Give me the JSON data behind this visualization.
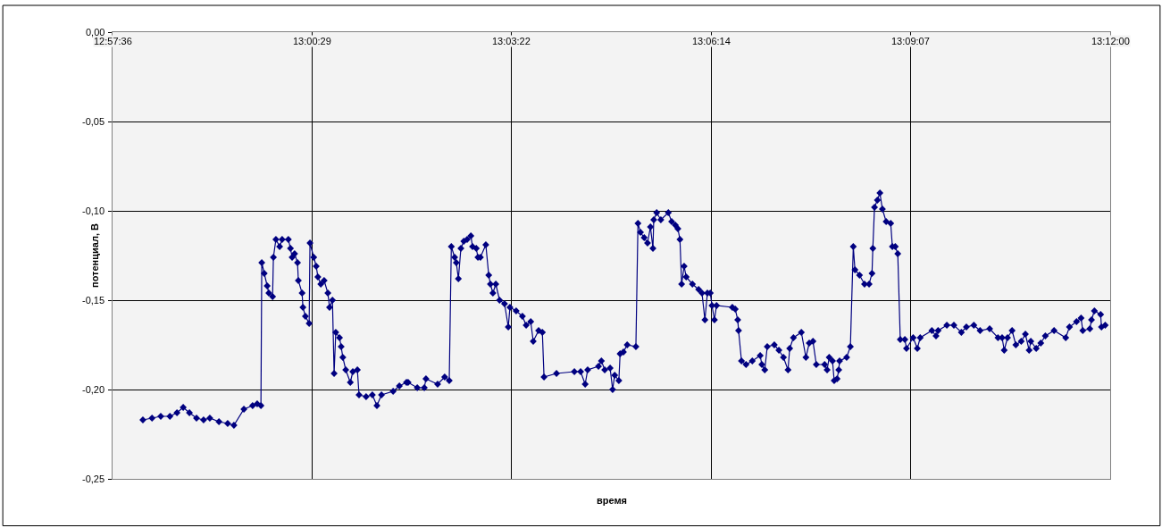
{
  "chart_data": {
    "type": "line",
    "xlabel": "время",
    "ylabel": "потенциал, В",
    "xlim": [
      12.96,
      13.2
    ],
    "xticks": [
      {
        "value": 12.96,
        "label": "12:57:36"
      },
      {
        "value": 13.008,
        "label": "13:00:29"
      },
      {
        "value": 13.056,
        "label": "13:03:22"
      },
      {
        "value": 13.104,
        "label": "13:06:14"
      },
      {
        "value": 13.152,
        "label": "13:09:07"
      },
      {
        "value": 13.2,
        "label": "13:12:00"
      }
    ],
    "ylim": [
      -0.25,
      0
    ],
    "yticks": [
      {
        "value": -0.25,
        "label": "-0,25"
      },
      {
        "value": -0.2,
        "label": "-0,20"
      },
      {
        "value": -0.15,
        "label": "-0,15"
      },
      {
        "value": -0.1,
        "label": "-0,10"
      },
      {
        "value": -0.05,
        "label": "-0,05"
      },
      {
        "value": 0,
        "label": "0,00"
      }
    ],
    "grid": true,
    "marker": "diamond",
    "line_style": "solid",
    "series": [
      {
        "color": "#000080",
        "x": [
          12.9673,
          12.9695,
          12.9716,
          12.9738,
          12.9755,
          12.977,
          12.9785,
          12.9802,
          12.9819,
          12.9834,
          12.9856,
          12.9877,
          12.9892,
          12.9916,
          12.9937,
          12.9948,
          12.9957,
          12.9959,
          12.9965,
          12.9972,
          12.9976,
          12.9985,
          12.9987,
          12.9993,
          13.0002,
          13.0008,
          13.0023,
          13.0028,
          13.0032,
          13.0038,
          13.0045,
          13.0047,
          13.0056,
          13.0058,
          13.0064,
          13.0073,
          13.0075,
          13.0084,
          13.009,
          13.0094,
          13.0101,
          13.0109,
          13.0118,
          13.0122,
          13.0129,
          13.0133,
          13.0137,
          13.0146,
          13.015,
          13.0154,
          13.0161,
          13.0172,
          13.0178,
          13.0189,
          13.0193,
          13.021,
          13.0225,
          13.0236,
          13.0247,
          13.0275,
          13.029,
          13.0307,
          13.0311,
          13.0333,
          13.035,
          13.0354,
          13.0382,
          13.0399,
          13.041,
          13.0415,
          13.0423,
          13.0427,
          13.0432,
          13.0438,
          13.0445,
          13.0453,
          13.0462,
          13.0466,
          13.0475,
          13.0479,
          13.0485,
          13.0498,
          13.0505,
          13.0509,
          13.0515,
          13.0522,
          13.0531,
          13.0543,
          13.0552,
          13.0556,
          13.0571,
          13.0586,
          13.0595,
          13.0606,
          13.0612,
          13.0625,
          13.0634,
          13.0638,
          13.0668,
          13.0711,
          13.0726,
          13.0737,
          13.0743,
          13.0769,
          13.0776,
          13.0784,
          13.0797,
          13.0803,
          13.0808,
          13.0818,
          13.0821,
          13.0829,
          13.0838,
          13.0859,
          13.0864,
          13.087,
          13.0879,
          13.0887,
          13.0894,
          13.09,
          13.0902,
          13.0909,
          13.0919,
          13.0937,
          13.0945,
          13.0954,
          13.096,
          13.0965,
          13.0969,
          13.0975,
          13.098,
          13.0995,
          13.101,
          13.1018,
          13.1025,
          13.1031,
          13.1038,
          13.1042,
          13.1048,
          13.1053,
          13.1091,
          13.1098,
          13.1104,
          13.1106,
          13.1113,
          13.1124,
          13.1139,
          13.1158,
          13.1162,
          13.1169,
          13.1175,
          13.1192,
          13.1203,
          13.1214,
          13.1225,
          13.1229,
          13.1238,
          13.1257,
          13.1268,
          13.1276,
          13.1285,
          13.1293,
          13.1313,
          13.1319,
          13.1324,
          13.1332,
          13.1336,
          13.1343,
          13.1347,
          13.1349,
          13.1366,
          13.1375,
          13.1382,
          13.1386,
          13.1397,
          13.1409,
          13.142,
          13.1427,
          13.1429,
          13.1433,
          13.144,
          13.1446,
          13.1452,
          13.1461,
          13.1472,
          13.1476,
          13.1483,
          13.1489,
          13.1495,
          13.1506,
          13.151,
          13.1526,
          13.1536,
          13.1543,
          13.1571,
          13.1581,
          13.1586,
          13.1607,
          13.1624,
          13.1642,
          13.1654,
          13.1672,
          13.1687,
          13.171,
          13.173,
          13.174,
          13.1745,
          13.1753,
          13.1764,
          13.1773,
          13.1786,
          13.1796,
          13.1805,
          13.1809,
          13.1822,
          13.1833,
          13.1844,
          13.1865,
          13.1893,
          13.1902,
          13.1919,
          13.193,
          13.1934,
          13.1951,
          13.1955,
          13.1962,
          13.1977,
          13.1979,
          13.1988
        ],
        "values": [
          -0.217,
          -0.216,
          -0.215,
          -0.215,
          -0.213,
          -0.21,
          -0.213,
          -0.216,
          -0.217,
          -0.216,
          -0.218,
          -0.219,
          -0.22,
          -0.211,
          -0.209,
          -0.208,
          -0.209,
          -0.129,
          -0.135,
          -0.142,
          -0.146,
          -0.148,
          -0.126,
          -0.116,
          -0.12,
          -0.116,
          -0.116,
          -0.121,
          -0.126,
          -0.124,
          -0.129,
          -0.139,
          -0.146,
          -0.154,
          -0.159,
          -0.163,
          -0.118,
          -0.126,
          -0.131,
          -0.137,
          -0.141,
          -0.139,
          -0.146,
          -0.154,
          -0.15,
          -0.191,
          -0.168,
          -0.171,
          -0.176,
          -0.182,
          -0.189,
          -0.196,
          -0.19,
          -0.189,
          -0.203,
          -0.204,
          -0.203,
          -0.209,
          -0.203,
          -0.201,
          -0.198,
          -0.196,
          -0.196,
          -0.199,
          -0.199,
          -0.194,
          -0.197,
          -0.193,
          -0.195,
          -0.12,
          -0.126,
          -0.129,
          -0.138,
          -0.121,
          -0.117,
          -0.116,
          -0.114,
          -0.12,
          -0.121,
          -0.126,
          -0.126,
          -0.119,
          -0.136,
          -0.141,
          -0.146,
          -0.141,
          -0.15,
          -0.152,
          -0.165,
          -0.154,
          -0.156,
          -0.159,
          -0.164,
          -0.162,
          -0.173,
          -0.167,
          -0.168,
          -0.193,
          -0.191,
          -0.19,
          -0.19,
          -0.197,
          -0.189,
          -0.187,
          -0.184,
          -0.189,
          -0.188,
          -0.2,
          -0.192,
          -0.195,
          -0.18,
          -0.179,
          -0.175,
          -0.176,
          -0.107,
          -0.112,
          -0.115,
          -0.118,
          -0.109,
          -0.121,
          -0.105,
          -0.101,
          -0.105,
          -0.101,
          -0.106,
          -0.108,
          -0.11,
          -0.116,
          -0.141,
          -0.131,
          -0.137,
          -0.141,
          -0.144,
          -0.146,
          -0.161,
          -0.146,
          -0.146,
          -0.153,
          -0.161,
          -0.153,
          -0.154,
          -0.155,
          -0.161,
          -0.167,
          -0.184,
          -0.186,
          -0.184,
          -0.181,
          -0.186,
          -0.189,
          -0.176,
          -0.175,
          -0.178,
          -0.182,
          -0.189,
          -0.177,
          -0.171,
          -0.168,
          -0.182,
          -0.174,
          -0.173,
          -0.186,
          -0.186,
          -0.189,
          -0.182,
          -0.184,
          -0.195,
          -0.194,
          -0.189,
          -0.184,
          -0.182,
          -0.176,
          -0.12,
          -0.133,
          -0.136,
          -0.141,
          -0.141,
          -0.135,
          -0.121,
          -0.098,
          -0.094,
          -0.09,
          -0.099,
          -0.106,
          -0.107,
          -0.12,
          -0.12,
          -0.124,
          -0.172,
          -0.172,
          -0.177,
          -0.171,
          -0.177,
          -0.171,
          -0.167,
          -0.17,
          -0.167,
          -0.164,
          -0.164,
          -0.168,
          -0.165,
          -0.164,
          -0.167,
          -0.166,
          -0.171,
          -0.171,
          -0.178,
          -0.171,
          -0.167,
          -0.175,
          -0.173,
          -0.169,
          -0.178,
          -0.173,
          -0.177,
          -0.174,
          -0.17,
          -0.167,
          -0.171,
          -0.165,
          -0.162,
          -0.16,
          -0.167,
          -0.166,
          -0.161,
          -0.156,
          -0.158,
          -0.165,
          -0.164
        ]
      }
    ]
  }
}
